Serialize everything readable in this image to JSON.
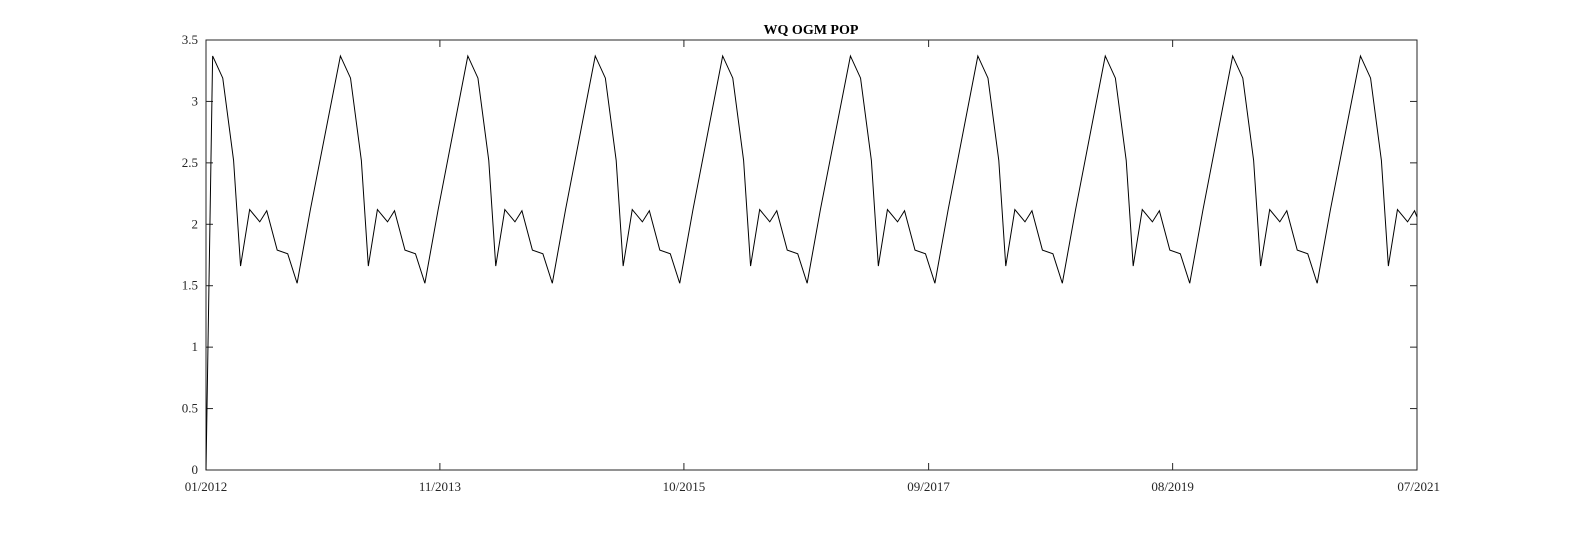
{
  "chart_data": {
    "type": "line",
    "title": "WQ OGM POP",
    "xlabel": "",
    "ylabel": "",
    "ylim": [
      0,
      3.5
    ],
    "yticks": [
      0,
      0.5,
      1,
      1.5,
      2,
      2.5,
      3,
      3.5
    ],
    "ytick_labels": [
      "0",
      "0.5",
      "1",
      "1.5",
      "2",
      "2.5",
      "3",
      "3.5"
    ],
    "xlim": [
      "2012-01-01",
      "2021-07-01"
    ],
    "xticks": [
      "2012-01-01",
      "2013-11-01",
      "2015-10-01",
      "2017-09-01",
      "2019-08-01",
      "2021-07-01"
    ],
    "xtick_labels": [
      "01/2012",
      "11/2013",
      "10/2015",
      "09/2017",
      "08/2019",
      "07/2021"
    ],
    "grid": false,
    "legend": "none",
    "colors": {
      "line": "#000000",
      "axes": "#262626"
    },
    "annual_pattern": {
      "days_of_year": [
        1,
        20,
        49,
        80,
        100,
        126,
        155,
        175,
        205,
        235,
        262,
        300
      ],
      "values": [
        0.0,
        3.37,
        3.19,
        2.52,
        1.66,
        2.12,
        2.02,
        2.11,
        1.79,
        1.76,
        1.52,
        2.12
      ]
    },
    "series": [
      {
        "name": "",
        "x": [
          "2012-01-01",
          "2012-01-20",
          "2012-02-18",
          "2012-03-20",
          "2012-04-09",
          "2012-05-05",
          "2012-06-03",
          "2012-06-23",
          "2012-07-23",
          "2012-08-22",
          "2012-09-18",
          "2012-10-26",
          "2013-01-20",
          "2013-02-18",
          "2013-03-21",
          "2013-04-10",
          "2013-05-06",
          "2013-06-04",
          "2013-06-24",
          "2013-07-24",
          "2013-08-23",
          "2013-09-19",
          "2013-10-27",
          "2014-01-20",
          "2014-02-18",
          "2014-03-21",
          "2014-04-10",
          "2014-05-06",
          "2014-06-04",
          "2014-06-24",
          "2014-07-24",
          "2014-08-23",
          "2014-09-19",
          "2014-10-27",
          "2015-01-20",
          "2015-02-18",
          "2015-03-21",
          "2015-04-10",
          "2015-05-06",
          "2015-06-04",
          "2015-06-24",
          "2015-07-24",
          "2015-08-23",
          "2015-09-19",
          "2015-10-27",
          "2016-01-20",
          "2016-02-18",
          "2016-03-20",
          "2016-04-09",
          "2016-05-05",
          "2016-06-03",
          "2016-06-23",
          "2016-07-23",
          "2016-08-22",
          "2016-09-18",
          "2016-10-26",
          "2017-01-20",
          "2017-02-18",
          "2017-03-21",
          "2017-04-10",
          "2017-05-06",
          "2017-06-04",
          "2017-06-24",
          "2017-07-24",
          "2017-08-23",
          "2017-09-19",
          "2017-10-27",
          "2018-01-20",
          "2018-02-18",
          "2018-03-21",
          "2018-04-10",
          "2018-05-06",
          "2018-06-04",
          "2018-06-24",
          "2018-07-24",
          "2018-08-23",
          "2018-09-19",
          "2018-10-27",
          "2019-01-20",
          "2019-02-18",
          "2019-03-21",
          "2019-04-10",
          "2019-05-06",
          "2019-06-04",
          "2019-06-24",
          "2019-07-24",
          "2019-08-23",
          "2019-09-19",
          "2019-10-27",
          "2020-01-20",
          "2020-02-18",
          "2020-03-20",
          "2020-04-09",
          "2020-05-05",
          "2020-06-03",
          "2020-06-23",
          "2020-07-23",
          "2020-08-22",
          "2020-09-18",
          "2020-10-26",
          "2021-01-20",
          "2021-02-18",
          "2021-03-21",
          "2021-04-10",
          "2021-05-06",
          "2021-06-04",
          "2021-06-24",
          "2021-07-01"
        ],
        "y": [
          0.0,
          3.37,
          3.19,
          2.52,
          1.66,
          2.12,
          2.02,
          2.11,
          1.79,
          1.76,
          1.52,
          2.12,
          3.37,
          3.19,
          2.52,
          1.66,
          2.12,
          2.02,
          2.11,
          1.79,
          1.76,
          1.52,
          2.12,
          3.37,
          3.19,
          2.52,
          1.66,
          2.12,
          2.02,
          2.11,
          1.79,
          1.76,
          1.52,
          2.12,
          3.37,
          3.19,
          2.52,
          1.66,
          2.12,
          2.02,
          2.11,
          1.79,
          1.76,
          1.52,
          2.12,
          3.37,
          3.19,
          2.52,
          1.66,
          2.12,
          2.02,
          2.11,
          1.79,
          1.76,
          1.52,
          2.12,
          3.37,
          3.19,
          2.52,
          1.66,
          2.12,
          2.02,
          2.11,
          1.79,
          1.76,
          1.52,
          2.12,
          3.37,
          3.19,
          2.52,
          1.66,
          2.12,
          2.02,
          2.11,
          1.79,
          1.76,
          1.52,
          2.12,
          3.37,
          3.19,
          2.52,
          1.66,
          2.12,
          2.02,
          2.11,
          1.79,
          1.76,
          1.52,
          2.12,
          3.37,
          3.19,
          2.52,
          1.66,
          2.12,
          2.02,
          2.11,
          1.79,
          1.76,
          1.52,
          2.12,
          3.37,
          3.19,
          2.52,
          1.66,
          2.12,
          2.02,
          2.11,
          2.06
        ]
      }
    ]
  }
}
